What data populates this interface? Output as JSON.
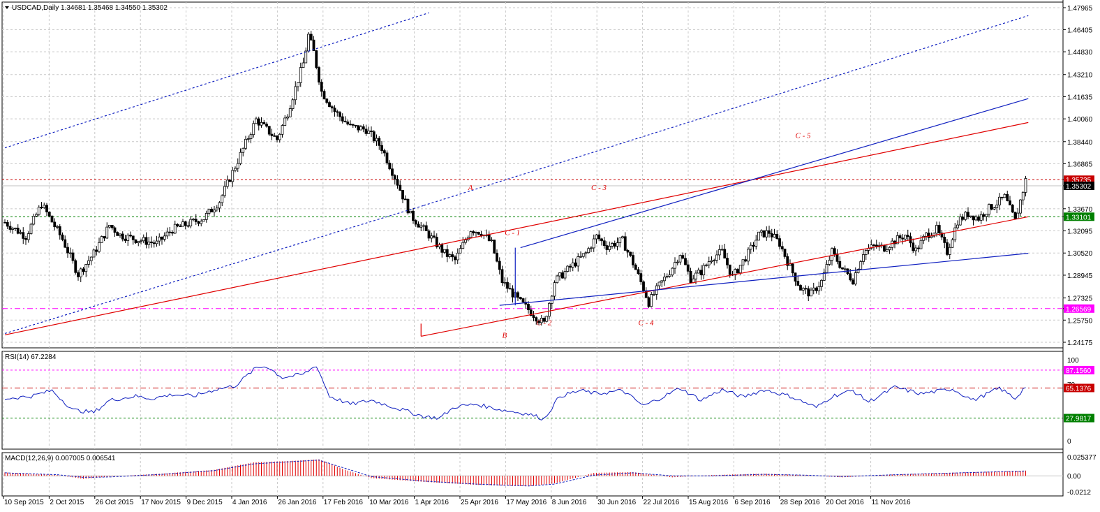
{
  "panels": {
    "main": {
      "info": "USDCAD,Daily  1.34681 1.35468 1.34550 1.35302"
    },
    "rsi": {
      "info": "RSI(14) 67.2284"
    },
    "macd": {
      "info": "MACD(12,26,9) 0.007005 0.006541"
    }
  },
  "colors": {
    "bg": "#ffffff",
    "grid": "#c8c8c8",
    "candle": "#000000",
    "red_line": "#e00000",
    "blue_line": "#1020c0",
    "magenta": "#ff00ff",
    "green": "#00a000",
    "macd_hist": "#e00000",
    "rsi_line": "#1020c0"
  },
  "chart_data": [
    {
      "type": "candlestick",
      "symbol": "USDCAD",
      "timeframe": "Daily",
      "ohlc_last": {
        "open": 1.34681,
        "high": 1.35468,
        "low": 1.3455,
        "close": 1.35302
      },
      "ylim": [
        1.24175,
        1.47965
      ],
      "y_ticks": [
        "1.47965",
        "1.46405",
        "1.44830",
        "1.43210",
        "1.41635",
        "1.40060",
        "1.38440",
        "1.36865",
        "1.35735",
        "1.35302",
        "1.33670",
        "1.33101",
        "1.32095",
        "1.30520",
        "1.28945",
        "1.27325",
        "1.26569",
        "1.25750",
        "1.24175"
      ],
      "x_ticks": [
        "10 Sep 2015",
        "2 Oct 2015",
        "26 Oct 2015",
        "17 Nov 2015",
        "9 Dec 2015",
        "4 Jan 2016",
        "26 Jan 2016",
        "17 Feb 2016",
        "10 Mar 2016",
        "1 Apr 2016",
        "25 Apr 2016",
        "17 May 2016",
        "8 Jun 2016",
        "30 Jun 2016",
        "22 Jul 2016",
        "15 Aug 2016",
        "6 Sep 2016",
        "28 Sep 2016",
        "20 Oct 2016",
        "11 Nov 2016"
      ],
      "price_path": [
        [
          0,
          1.327
        ],
        [
          8,
          1.317
        ],
        [
          14,
          1.34
        ],
        [
          22,
          1.315
        ],
        [
          28,
          1.29
        ],
        [
          34,
          1.305
        ],
        [
          40,
          1.325
        ],
        [
          44,
          1.318
        ],
        [
          50,
          1.315
        ],
        [
          58,
          1.312
        ],
        [
          64,
          1.322
        ],
        [
          70,
          1.326
        ],
        [
          76,
          1.33
        ],
        [
          82,
          1.342
        ],
        [
          90,
          1.375
        ],
        [
          96,
          1.4
        ],
        [
          100,
          1.393
        ],
        [
          104,
          1.386
        ],
        [
          108,
          1.405
        ],
        [
          114,
          1.44
        ],
        [
          116,
          1.46
        ],
        [
          118,
          1.448
        ],
        [
          121,
          1.42
        ],
        [
          126,
          1.406
        ],
        [
          132,
          1.395
        ],
        [
          138,
          1.393
        ],
        [
          144,
          1.38
        ],
        [
          150,
          1.355
        ],
        [
          155,
          1.332
        ],
        [
          162,
          1.318
        ],
        [
          168,
          1.305
        ],
        [
          172,
          1.3
        ],
        [
          178,
          1.322
        ],
        [
          182,
          1.32
        ],
        [
          186,
          1.312
        ],
        [
          190,
          1.285
        ],
        [
          196,
          1.272
        ],
        [
          200,
          1.265
        ],
        [
          204,
          1.258
        ],
        [
          206,
          1.255
        ],
        [
          210,
          1.285
        ],
        [
          216,
          1.295
        ],
        [
          222,
          1.305
        ],
        [
          226,
          1.317
        ],
        [
          230,
          1.31
        ],
        [
          236,
          1.314
        ],
        [
          240,
          1.298
        ],
        [
          244,
          1.28
        ],
        [
          246,
          1.27
        ],
        [
          250,
          1.282
        ],
        [
          254,
          1.292
        ],
        [
          258,
          1.305
        ],
        [
          262,
          1.287
        ],
        [
          266,
          1.292
        ],
        [
          270,
          1.302
        ],
        [
          274,
          1.306
        ],
        [
          278,
          1.288
        ],
        [
          284,
          1.305
        ],
        [
          288,
          1.318
        ],
        [
          292,
          1.32
        ],
        [
          296,
          1.312
        ],
        [
          300,
          1.295
        ],
        [
          304,
          1.28
        ],
        [
          308,
          1.276
        ],
        [
          312,
          1.285
        ],
        [
          316,
          1.306
        ],
        [
          320,
          1.294
        ],
        [
          324,
          1.286
        ],
        [
          328,
          1.306
        ],
        [
          332,
          1.31
        ],
        [
          336,
          1.309
        ],
        [
          340,
          1.314
        ],
        [
          344,
          1.318
        ],
        [
          348,
          1.307
        ],
        [
          352,
          1.318
        ],
        [
          356,
          1.322
        ],
        [
          360,
          1.306
        ],
        [
          364,
          1.328
        ],
        [
          368,
          1.333
        ],
        [
          372,
          1.33
        ],
        [
          376,
          1.337
        ],
        [
          380,
          1.342
        ],
        [
          382,
          1.345
        ],
        [
          386,
          1.328
        ],
        [
          390,
          1.357
        ]
      ],
      "annotations": [
        "A",
        "B",
        "C - 1",
        "C - 2",
        "C - 3",
        "C - 4",
        "C - 5"
      ],
      "price_tags": [
        {
          "value": "1.35735",
          "color": "#c80000",
          "text_color": "#ffffff"
        },
        {
          "value": "1.35302",
          "color": "#000000",
          "text_color": "#ffffff"
        },
        {
          "value": "1.33101",
          "color": "#008000",
          "text_color": "#ffffff"
        },
        {
          "value": "1.26569",
          "color": "#ff00ff",
          "text_color": "#ffffff"
        }
      ],
      "horizontal_levels": [
        1.35735,
        1.35302,
        1.33101,
        1.26569
      ]
    },
    {
      "type": "line",
      "name": "RSI(14)",
      "value": 67.2284,
      "ylim": [
        0,
        100
      ],
      "y_ticks": [
        "100",
        "70",
        "0"
      ],
      "levels": [
        {
          "value": "87.1560",
          "color": "#ff00ff"
        },
        {
          "value": "65.1376",
          "color": "#c80000"
        },
        {
          "value": "27.9817",
          "color": "#008000"
        }
      ],
      "series": [
        [
          0,
          52
        ],
        [
          10,
          55
        ],
        [
          18,
          62
        ],
        [
          26,
          38
        ],
        [
          34,
          35
        ],
        [
          40,
          50
        ],
        [
          50,
          55
        ],
        [
          56,
          52
        ],
        [
          64,
          57
        ],
        [
          72,
          55
        ],
        [
          80,
          63
        ],
        [
          88,
          68
        ],
        [
          96,
          90
        ],
        [
          100,
          92
        ],
        [
          106,
          78
        ],
        [
          114,
          82
        ],
        [
          119,
          93
        ],
        [
          124,
          55
        ],
        [
          132,
          45
        ],
        [
          140,
          50
        ],
        [
          150,
          40
        ],
        [
          160,
          30
        ],
        [
          166,
          28
        ],
        [
          172,
          42
        ],
        [
          180,
          45
        ],
        [
          190,
          38
        ],
        [
          200,
          33
        ],
        [
          206,
          27
        ],
        [
          212,
          55
        ],
        [
          220,
          62
        ],
        [
          226,
          58
        ],
        [
          236,
          62
        ],
        [
          244,
          43
        ],
        [
          250,
          52
        ],
        [
          258,
          65
        ],
        [
          266,
          50
        ],
        [
          274,
          63
        ],
        [
          282,
          54
        ],
        [
          290,
          63
        ],
        [
          300,
          55
        ],
        [
          310,
          41
        ],
        [
          316,
          55
        ],
        [
          324,
          62
        ],
        [
          330,
          48
        ],
        [
          340,
          66
        ],
        [
          350,
          58
        ],
        [
          362,
          64
        ],
        [
          370,
          50
        ],
        [
          380,
          65
        ],
        [
          386,
          52
        ],
        [
          390,
          67.2
        ]
      ]
    },
    {
      "type": "bar",
      "name": "MACD(12,26,9)",
      "values_label": [
        "0.007005",
        "0.006541"
      ],
      "ylim": [
        -0.0212,
        0.025377
      ],
      "y_ticks": [
        "0.025377",
        "0.00",
        "-0.0212"
      ],
      "histogram": [
        [
          0,
          0.0045
        ],
        [
          20,
          0.001
        ],
        [
          30,
          -0.004
        ],
        [
          40,
          -0.001
        ],
        [
          60,
          0.003
        ],
        [
          80,
          0.008
        ],
        [
          95,
          0.018
        ],
        [
          110,
          0.02
        ],
        [
          120,
          0.022
        ],
        [
          130,
          0.008
        ],
        [
          140,
          -0.003
        ],
        [
          160,
          -0.008
        ],
        [
          180,
          -0.012
        ],
        [
          200,
          -0.014
        ],
        [
          210,
          -0.01
        ],
        [
          225,
          0.004
        ],
        [
          240,
          0.005
        ],
        [
          255,
          -0.002
        ],
        [
          270,
          0.001
        ],
        [
          290,
          0.003
        ],
        [
          305,
          0.001
        ],
        [
          320,
          -0.002
        ],
        [
          340,
          0.002
        ],
        [
          360,
          0.004
        ],
        [
          380,
          0.006
        ],
        [
          390,
          0.007
        ]
      ],
      "signal": [
        [
          0,
          0.004
        ],
        [
          20,
          0.0015
        ],
        [
          30,
          -0.002
        ],
        [
          40,
          -0.0015
        ],
        [
          60,
          0.002
        ],
        [
          80,
          0.007
        ],
        [
          95,
          0.016
        ],
        [
          110,
          0.019
        ],
        [
          120,
          0.021
        ],
        [
          130,
          0.01
        ],
        [
          140,
          -0.001
        ],
        [
          160,
          -0.007
        ],
        [
          180,
          -0.011
        ],
        [
          200,
          -0.0135
        ],
        [
          210,
          -0.011
        ],
        [
          225,
          0.001
        ],
        [
          240,
          0.004
        ],
        [
          255,
          0.0
        ],
        [
          270,
          0.0
        ],
        [
          290,
          0.002
        ],
        [
          305,
          0.001
        ],
        [
          320,
          -0.001
        ],
        [
          340,
          0.0015
        ],
        [
          360,
          0.0035
        ],
        [
          380,
          0.0055
        ],
        [
          390,
          0.0065
        ]
      ]
    }
  ]
}
